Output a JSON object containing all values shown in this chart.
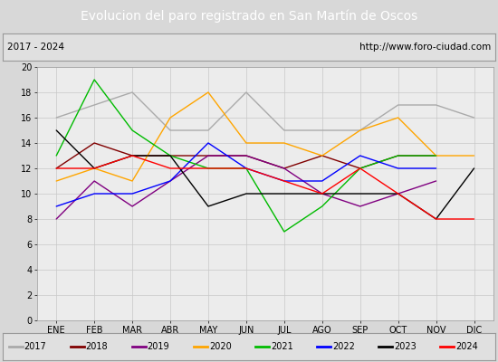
{
  "title": "Evolucion del paro registrado en San Martín de Oscos",
  "subtitle_left": "2017 - 2024",
  "subtitle_right": "http://www.foro-ciudad.com",
  "months": [
    "ENE",
    "FEB",
    "MAR",
    "ABR",
    "MAY",
    "JUN",
    "JUL",
    "AGO",
    "SEP",
    "OCT",
    "NOV",
    "DIC"
  ],
  "ylim": [
    0,
    20
  ],
  "yticks": [
    0,
    2,
    4,
    6,
    8,
    10,
    12,
    14,
    16,
    18,
    20
  ],
  "series": {
    "2017": {
      "color": "#aaaaaa",
      "values": [
        16,
        17,
        18,
        15,
        15,
        18,
        15,
        15,
        15,
        17,
        17,
        16
      ]
    },
    "2018": {
      "color": "#800000",
      "values": [
        12,
        14,
        13,
        13,
        13,
        13,
        12,
        13,
        12,
        13,
        13,
        null
      ]
    },
    "2019": {
      "color": "#800080",
      "values": [
        8,
        11,
        9,
        11,
        13,
        13,
        12,
        10,
        9,
        10,
        11,
        null
      ]
    },
    "2020": {
      "color": "#ffa500",
      "values": [
        11,
        12,
        11,
        16,
        18,
        14,
        14,
        13,
        15,
        16,
        13,
        13
      ]
    },
    "2021": {
      "color": "#00bb00",
      "values": [
        13,
        19,
        15,
        13,
        12,
        12,
        7,
        9,
        12,
        13,
        13,
        null
      ]
    },
    "2022": {
      "color": "#0000ff",
      "values": [
        9,
        10,
        10,
        11,
        14,
        12,
        11,
        11,
        13,
        12,
        12,
        null
      ]
    },
    "2023": {
      "color": "#000000",
      "values": [
        15,
        12,
        13,
        13,
        9,
        10,
        10,
        10,
        10,
        10,
        8,
        12
      ]
    },
    "2024": {
      "color": "#ff0000",
      "values": [
        12,
        12,
        13,
        12,
        12,
        12,
        11,
        10,
        12,
        null,
        8,
        8
      ]
    }
  },
  "bg_title": "#4466bb",
  "bg_subtitle": "#e0e0e0",
  "bg_chart": "#d8d8d8",
  "title_color": "#ffffff"
}
